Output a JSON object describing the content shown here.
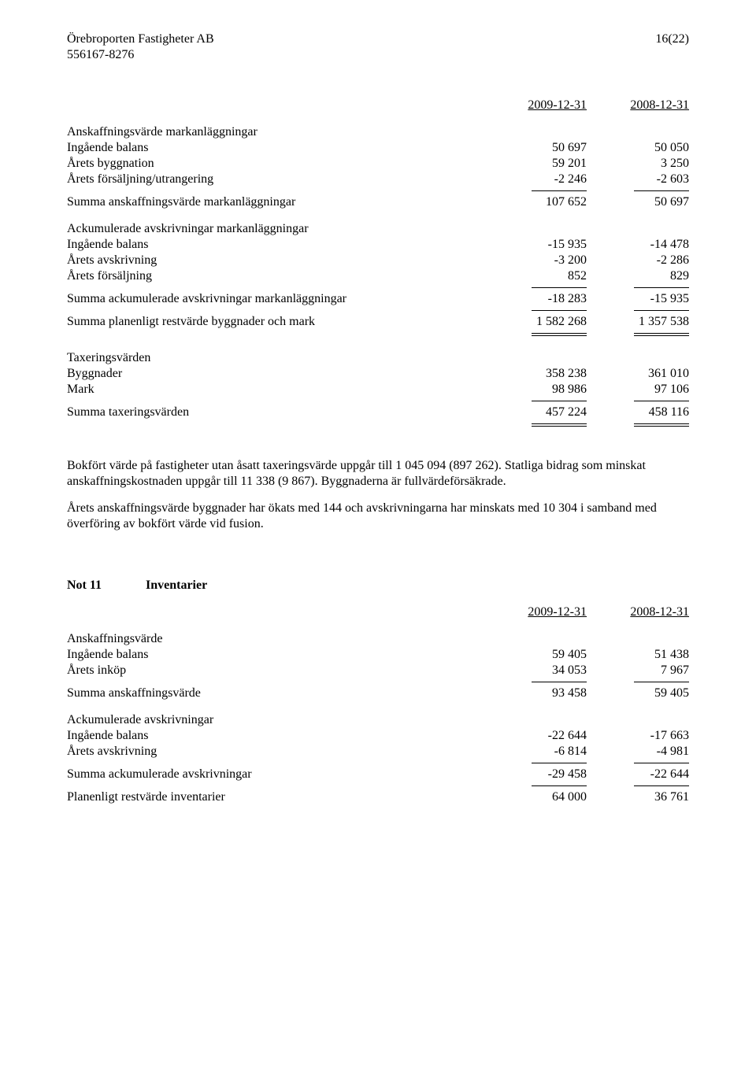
{
  "header": {
    "company": "Örebroporten Fastigheter AB",
    "orgnr": "556167-8276",
    "pagenum": "16(22)"
  },
  "dates": {
    "col1": "2009-12-31",
    "col2": "2008-12-31"
  },
  "s1": {
    "title": "Anskaffningsvärde markanläggningar",
    "r1": {
      "label": "Ingående balans",
      "v1": "50 697",
      "v2": "50 050"
    },
    "r2": {
      "label": "Årets byggnation",
      "v1": "59 201",
      "v2": "3 250"
    },
    "r3": {
      "label": "Årets försäljning/utrangering",
      "v1": "-2 246",
      "v2": "-2 603"
    },
    "sum": {
      "label": "Summa anskaffningsvärde markanläggningar",
      "v1": "107 652",
      "v2": "50 697"
    }
  },
  "s2": {
    "title": "Ackumulerade avskrivningar markanläggningar",
    "r1": {
      "label": "Ingående balans",
      "v1": "-15 935",
      "v2": "-14 478"
    },
    "r2": {
      "label": "Årets avskrivning",
      "v1": "-3 200",
      "v2": "-2 286"
    },
    "r3": {
      "label": "Årets försäljning",
      "v1": "852",
      "v2": "829"
    },
    "sum": {
      "label": "Summa ackumulerade avskrivningar markanläggningar",
      "v1": "-18 283",
      "v2": "-15 935"
    }
  },
  "s3": {
    "sum": {
      "label": "Summa planenligt restvärde byggnader och mark",
      "v1": "1 582 268",
      "v2": "1 357 538"
    }
  },
  "s4": {
    "title": "Taxeringsvärden",
    "r1": {
      "label": "Byggnader",
      "v1": "358 238",
      "v2": "361 010"
    },
    "r2": {
      "label": "Mark",
      "v1": "98 986",
      "v2": "97 106"
    },
    "sum": {
      "label": "Summa taxeringsvärden",
      "v1": "457 224",
      "v2": "458 116"
    }
  },
  "para1": "Bokfört värde på fastigheter utan åsatt taxeringsvärde uppgår till 1 045 094 (897 262). Statliga bidrag som minskat anskaffningskostnaden uppgår till 11 338 (9 867). Byggnaderna är fullvärdeförsäkrade.",
  "para2": "Årets anskaffningsvärde byggnader har ökats med 144 och avskrivningarna har minskats med 10 304 i samband med överföring av bokfört värde vid fusion.",
  "note11": {
    "num": "Not 11",
    "name": "Inventarier"
  },
  "s5": {
    "title": "Anskaffningsvärde",
    "r1": {
      "label": "Ingående balans",
      "v1": "59 405",
      "v2": "51 438"
    },
    "r2": {
      "label": "Årets inköp",
      "v1": "34 053",
      "v2": "7 967"
    },
    "sum": {
      "label": "Summa anskaffningsvärde",
      "v1": "93 458",
      "v2": "59 405"
    }
  },
  "s6": {
    "title": "Ackumulerade avskrivningar",
    "r1": {
      "label": "Ingående balans",
      "v1": "-22 644",
      "v2": "-17 663"
    },
    "r2": {
      "label": "Årets avskrivning",
      "v1": "-6 814",
      "v2": "-4 981"
    },
    "sum": {
      "label": "Summa ackumulerade avskrivningar",
      "v1": "-29 458",
      "v2": "-22 644"
    }
  },
  "s7": {
    "sum": {
      "label": "Planenligt restvärde inventarier",
      "v1": "64 000",
      "v2": "36 761"
    }
  }
}
